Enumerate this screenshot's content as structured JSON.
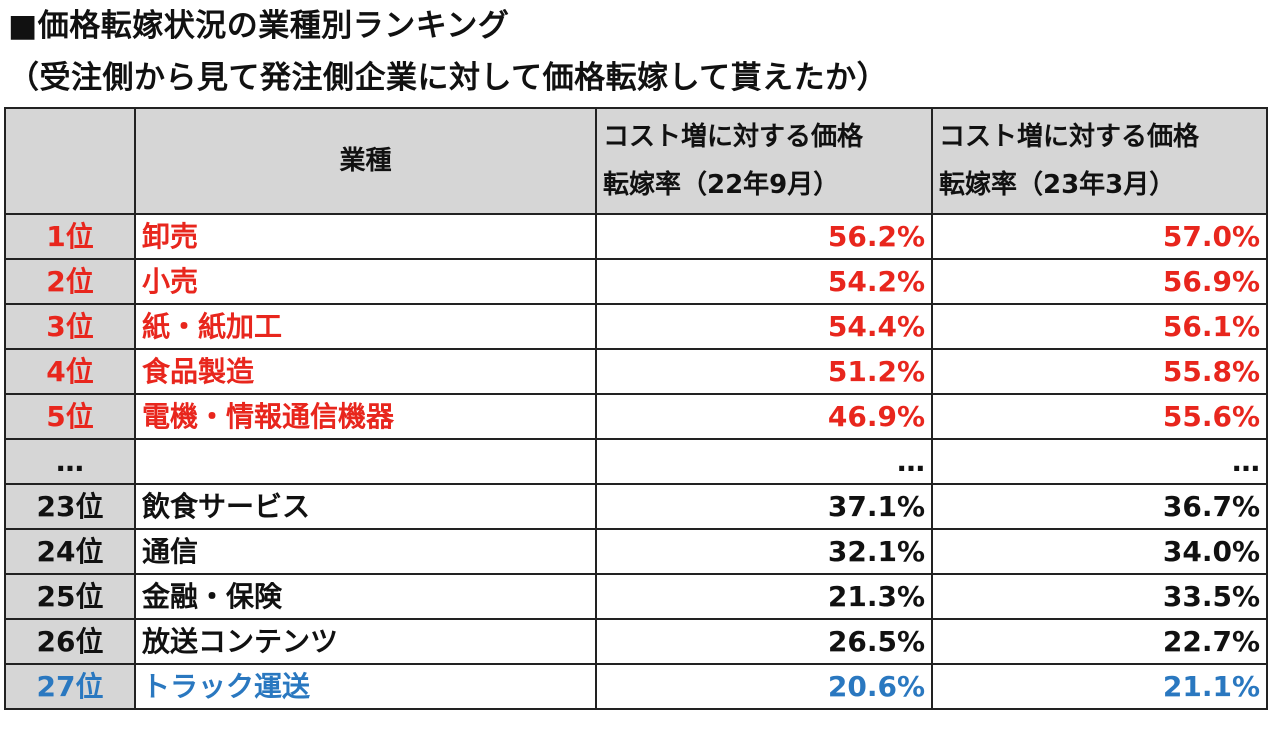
{
  "title": "■価格転嫁状況の業種別ランキング",
  "subtitle": "（受注側から見て発注側企業に対して価格転嫁して貰えたか）",
  "colors": {
    "header_bg": "#d6d6d6",
    "top_rank": "#e8261d",
    "bottom_rank": "#2a78c0",
    "default_text": "#111111"
  },
  "header": {
    "rank": "",
    "industry": "業種",
    "col1_line1": "コスト増に対する価格",
    "col1_line2": "転嫁率（22年9月）",
    "col2_line1": "コスト増に対する価格",
    "col2_line2": "転嫁率（23年3月）"
  },
  "rows": [
    {
      "rank": "1位",
      "industry": "卸売",
      "sep22": "56.2%",
      "mar23": "57.0%"
    },
    {
      "rank": "2位",
      "industry": "小売",
      "sep22": "54.2%",
      "mar23": "56.9%"
    },
    {
      "rank": "3位",
      "industry": "紙・紙加工",
      "sep22": "54.4%",
      "mar23": "56.1%"
    },
    {
      "rank": "4位",
      "industry": "食品製造",
      "sep22": "51.2%",
      "mar23": "55.8%"
    },
    {
      "rank": "5位",
      "industry": "電機・情報通信機器",
      "sep22": "46.9%",
      "mar23": "55.6%"
    },
    {
      "rank": "…",
      "industry": "",
      "sep22": "…",
      "mar23": "…"
    },
    {
      "rank": "23位",
      "industry": "飲食サービス",
      "sep22": "37.1%",
      "mar23": "36.7%"
    },
    {
      "rank": "24位",
      "industry": "通信",
      "sep22": "32.1%",
      "mar23": "34.0%"
    },
    {
      "rank": "25位",
      "industry": "金融・保険",
      "sep22": "21.3%",
      "mar23": "33.5%"
    },
    {
      "rank": "26位",
      "industry": "放送コンテンツ",
      "sep22": "26.5%",
      "mar23": "22.7%"
    },
    {
      "rank": "27位",
      "industry": "トラック運送",
      "sep22": "20.6%",
      "mar23": "21.1%"
    }
  ]
}
